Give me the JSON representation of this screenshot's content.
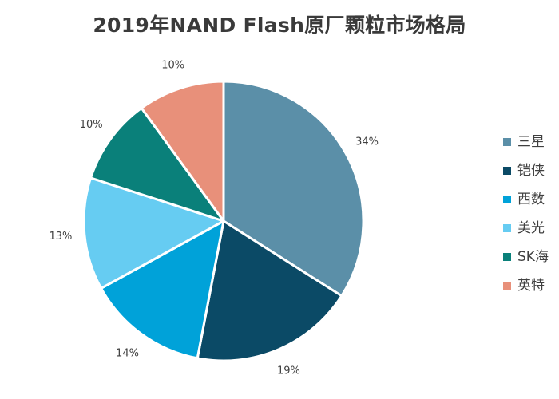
{
  "chart_data": {
    "type": "pie",
    "title": "2019年NAND Flash原厂颗粒市场格局",
    "legend_position": "right",
    "slices": [
      {
        "name": "三星",
        "value": 34,
        "label": "34%",
        "color": "#5b8fa8"
      },
      {
        "name": "铠侠",
        "value": 19,
        "label": "19%",
        "color": "#0b4a66"
      },
      {
        "name": "西数",
        "value": 14,
        "label": "14%",
        "color": "#00a2d9"
      },
      {
        "name": "美光",
        "value": 13,
        "label": "13%",
        "color": "#66ccf2"
      },
      {
        "name": "SK海",
        "value": 10,
        "label": "10%",
        "color": "#0a807a"
      },
      {
        "name": "英特",
        "value": 10,
        "label": "10%",
        "color": "#e8907a"
      }
    ]
  }
}
